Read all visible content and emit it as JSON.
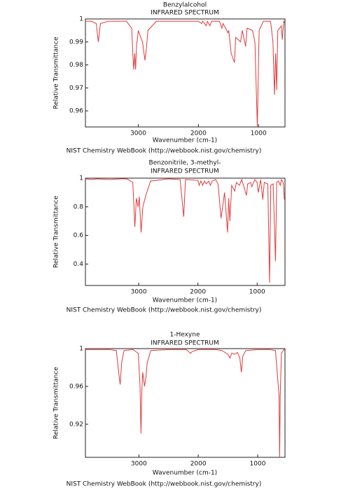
{
  "chart_data": [
    {
      "type": "line",
      "title": "Benzylalcohol",
      "subtitle": "INFRARED SPECTRUM",
      "x_label": "Wavenumber (cm-1)",
      "y_label": "Relative Transmittance",
      "source": "NIST Chemistry WebBook (http://webbook.nist.gov/chemistry)",
      "xlim": [
        3880,
        560
      ],
      "ylim": [
        0.953,
        1
      ],
      "xticks": [
        3000,
        2000,
        1000
      ],
      "yticks": [
        0.96,
        0.97,
        0.98,
        0.99,
        1
      ],
      "color": "#e03a3a",
      "x": [
        3880,
        3780,
        3700,
        3665,
        3630,
        3500,
        3200,
        3110,
        3090,
        3075,
        3060,
        3045,
        3030,
        3000,
        2960,
        2930,
        2890,
        2870,
        2840,
        2700,
        2000,
        1950,
        1930,
        1870,
        1850,
        1810,
        1780,
        1650,
        1610,
        1590,
        1510,
        1495,
        1455,
        1400,
        1380,
        1300,
        1270,
        1215,
        1190,
        1100,
        1060,
        1020,
        990,
        920,
        800,
        760,
        735,
        715,
        697,
        680,
        620,
        605,
        580,
        560
      ],
      "values": [
        0.999,
        0.999,
        0.998,
        0.99,
        0.998,
        0.999,
        0.999,
        0.996,
        0.984,
        0.978,
        0.985,
        0.978,
        0.988,
        0.995,
        0.992,
        0.99,
        0.982,
        0.986,
        0.995,
        0.999,
        0.999,
        0.998,
        0.999,
        0.997,
        0.999,
        0.997,
        0.999,
        0.999,
        0.996,
        0.998,
        0.994,
        0.995,
        0.985,
        0.981,
        0.992,
        0.99,
        0.995,
        0.988,
        0.996,
        0.995,
        0.99,
        0.953,
        0.995,
        0.999,
        0.999,
        0.99,
        0.967,
        0.985,
        0.969,
        0.995,
        0.997,
        0.991,
        0.999,
        0.998
      ]
    },
    {
      "type": "line",
      "title": "Benzonitrile, 3-methyl-",
      "subtitle": "INFRARED SPECTRUM",
      "x_label": "Wavenumber (cm-1)",
      "y_label": "Relative Transmittance",
      "source": "NIST Chemistry WebBook (http://webbook.nist.gov/chemistry)",
      "xlim": [
        3900,
        530
      ],
      "ylim": [
        0.25,
        1
      ],
      "xticks": [
        3000,
        2000,
        1000
      ],
      "yticks": [
        0.4,
        0.6,
        0.8,
        1
      ],
      "color": "#e03a3a",
      "x": [
        3900,
        3800,
        3700,
        3500,
        3300,
        3200,
        3100,
        3065,
        3040,
        3010,
        2990,
        2960,
        2930,
        2880,
        2800,
        2500,
        2300,
        2240,
        2210,
        2000,
        1980,
        1950,
        1920,
        1890,
        1860,
        1820,
        1790,
        1760,
        1700,
        1660,
        1610,
        1590,
        1550,
        1500,
        1480,
        1460,
        1430,
        1380,
        1350,
        1300,
        1260,
        1210,
        1180,
        1160,
        1110,
        1090,
        1040,
        1000,
        980,
        940,
        905,
        880,
        820,
        790,
        770,
        730,
        690,
        670,
        640,
        610,
        590,
        560,
        540
      ],
      "values": [
        0.995,
        0.99,
        0.995,
        0.99,
        0.995,
        0.995,
        0.97,
        0.66,
        0.86,
        0.8,
        0.87,
        0.62,
        0.8,
        0.88,
        0.98,
        0.995,
        0.99,
        0.73,
        0.99,
        0.985,
        0.95,
        0.98,
        0.95,
        0.98,
        0.96,
        0.98,
        0.95,
        0.98,
        0.99,
        0.96,
        0.72,
        0.78,
        0.9,
        0.62,
        0.86,
        0.7,
        0.95,
        0.91,
        0.97,
        0.95,
        0.99,
        0.92,
        0.88,
        0.96,
        0.97,
        0.94,
        0.99,
        0.97,
        0.9,
        0.99,
        0.85,
        0.97,
        0.96,
        0.27,
        0.95,
        0.96,
        0.42,
        0.97,
        0.98,
        0.95,
        0.99,
        0.97,
        0.85
      ]
    },
    {
      "type": "line",
      "title": "1-Hexyne",
      "subtitle": "INFRARED SPECTRUM",
      "x_label": "Wavenumber (cm-1)",
      "y_label": "Relative Transmittance",
      "source": "NIST Chemistry WebBook (http://webbook.nist.gov/chemistry)",
      "xlim": [
        3900,
        540
      ],
      "ylim": [
        0.885,
        1
      ],
      "xticks": [
        3000,
        2000,
        1000
      ],
      "yticks": [
        0.92,
        0.96,
        1
      ],
      "color": "#e03a3a",
      "x": [
        3900,
        3500,
        3380,
        3340,
        3315,
        3290,
        3250,
        3100,
        3010,
        2980,
        2965,
        2950,
        2935,
        2905,
        2880,
        2860,
        2800,
        2500,
        2200,
        2130,
        2100,
        2000,
        1700,
        1600,
        1500,
        1465,
        1440,
        1380,
        1340,
        1300,
        1275,
        1250,
        1200,
        1000,
        800,
        700,
        640,
        630,
        620,
        600,
        560,
        540
      ],
      "values": [
        0.999,
        0.999,
        0.998,
        0.975,
        0.962,
        0.985,
        0.998,
        0.999,
        0.995,
        0.96,
        0.91,
        0.955,
        0.975,
        0.96,
        0.97,
        0.985,
        0.998,
        0.999,
        0.999,
        0.995,
        0.997,
        0.999,
        0.999,
        0.998,
        0.994,
        0.99,
        0.995,
        0.994,
        0.996,
        0.99,
        0.975,
        0.992,
        0.998,
        0.999,
        0.999,
        0.998,
        0.95,
        0.885,
        0.95,
        0.995,
        0.999,
        0.998
      ]
    }
  ]
}
